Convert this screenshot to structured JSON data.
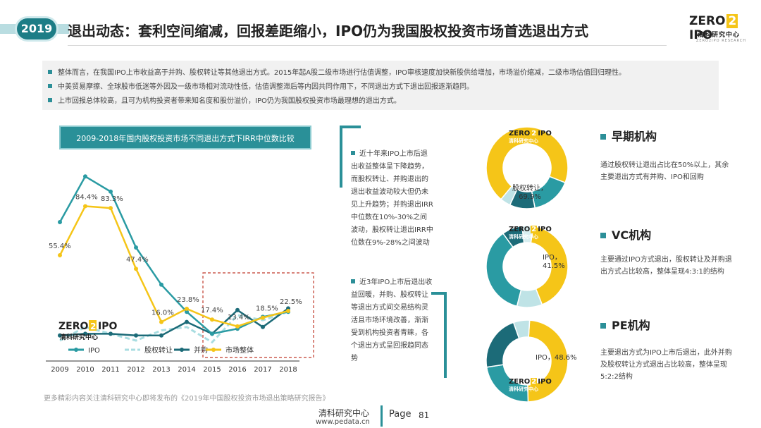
{
  "header": {
    "year": "2019",
    "title": "退出动态：套利空间缩减，回报差距缩小，IPO仍为我国股权投资市场首选退出方式",
    "logo_left": "ZERO",
    "logo_mark": "2",
    "logo_right": "IPO",
    "logo_cn": "清科研究中心",
    "logo_en": "ZERO2IPO RESEARCH"
  },
  "summary": [
    "整体而言，在我国IPO上市收益高于并购、股权转让等其他退出方式。2015年起A股二级市场进行估值调整，IPO审核速度加快新股供给增加，市场溢价缩减，二级市场估值回归理性。",
    "中美贸易摩擦、全球股市低迷等外因及一级市场相对流动性低，估值调整滞后等内因共同作用下，不同退出方式下退出回报逐渐趋同。",
    "上市回报总体较高，且可为机构投资者带来知名度和股份溢价，IPO仍为我国股权投资市场最理想的退出方式。"
  ],
  "chart_title": "2009-2018年国内股权投资市场不同退出方式下IRR中位数比较",
  "chart_data": {
    "type": "line",
    "x": [
      "2009",
      "2010",
      "2011",
      "2012",
      "2013",
      "2014",
      "2015",
      "2016",
      "2017",
      "2018"
    ],
    "series": [
      {
        "name": "IPO",
        "values": [
          75,
          102,
          93,
          60,
          38,
          22,
          9,
          12,
          19,
          22
        ],
        "color": "#2a9ba3"
      },
      {
        "name": "股权转让",
        "values": [
          5,
          13,
          9,
          5,
          11,
          13,
          4,
          20,
          17,
          22
        ],
        "color": "#a9dde1"
      },
      {
        "name": "并购",
        "values": [
          8,
          9,
          9,
          8,
          8,
          16,
          9,
          23,
          13,
          24
        ],
        "color": "#1c6b78"
      },
      {
        "name": "市场整体",
        "values": [
          55.4,
          84.4,
          83.3,
          47.4,
          16.0,
          23.8,
          17.4,
          13.4,
          18.5,
          22.5
        ],
        "color": "#f5c518"
      }
    ],
    "data_labels": [
      "55.4%",
      "84.4%",
      "83.3%",
      "47.4%",
      "16.0%",
      "23.8%",
      "17.4%",
      "13.4%",
      "18.5%",
      "22.5%"
    ],
    "ylim": [
      0,
      110
    ],
    "grid": false,
    "legend": "bottom"
  },
  "notes": [
    "近十年来IPO上市后退出收益整体呈下降趋势，而股权转让、并购退出的退出收益波动较大但仍未见上升趋势；并购退出IRR中位数在10%-30%之间波动，股权转让退出IRR中位数在9%-28%之间波动",
    "近3年IPO上市后退出收益回暖，并购、股权转让等退出方式间交易结构灵活且市场环境改善，渐渐受到机构投资者青睐，各个退出方式呈回报趋同态势"
  ],
  "donuts": [
    {
      "title": "早期机构",
      "desc": "通过股权转让退出占比在50%以上，其余主要退出方式有并购、IPO和回购",
      "label": "股权转让，",
      "value_label": "69.9%",
      "slices": [
        69.9,
        16,
        10,
        4.1
      ],
      "colors": [
        "#f5c518",
        "#2a9ba3",
        "#1c6b78",
        "#bfe3e6"
      ]
    },
    {
      "title": "VC机构",
      "desc": "主要通过IPO方式退出，股权转让及并购退出方式占比较高，整体呈现4:3:1的结构",
      "label": "IPO，",
      "value_label": "41.5%",
      "slices": [
        41.5,
        10,
        36,
        8,
        4.5
      ],
      "colors": [
        "#f5c518",
        "#bfe3e6",
        "#2a9ba3",
        "#1c6b78",
        "#d8eef0"
      ]
    },
    {
      "title": "PE机构",
      "desc": "主要退出方式为IPO上市后退出，此外并购及股权转让方式退出占比较高，整体呈现5:2:2结构",
      "label": "IPO，",
      "value_label": "48.6%",
      "slices": [
        48.6,
        23,
        22,
        6.4
      ],
      "colors": [
        "#f5c518",
        "#2a9ba3",
        "#1c6b78",
        "#bfe3e6"
      ]
    }
  ],
  "footer": {
    "note": "更多精彩内容关注清科研究中心即将发布的《2019年中国股权投资市场退出策略研究报告》",
    "org": "清科研究中心",
    "url": "www.pedata.cn",
    "page_label": "Page",
    "page_num": "81"
  }
}
